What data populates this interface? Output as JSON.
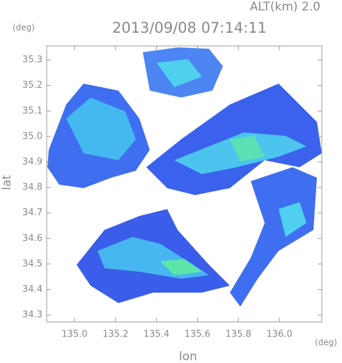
{
  "chart_data": {
    "type": "map",
    "title": "2013/09/08 07:14:11",
    "subtitle": "ALT(km) 2.0",
    "x_label": "lon",
    "y_label": "lat",
    "x_unit": "(deg)",
    "y_unit": "(deg)",
    "xlim": [
      134.864,
      136.207
    ],
    "ylim": [
      34.273,
      35.355
    ],
    "xticks": [
      {
        "value": 135,
        "label": "135.0"
      },
      135.2,
      135.4,
      135.6,
      135.8,
      {
        "value": 136,
        "label": "136.0"
      }
    ],
    "yticks": [
      34.3,
      34.4,
      34.5,
      34.6,
      34.7,
      34.8,
      34.9,
      {
        "value": 35,
        "label": "35.0"
      },
      35.1,
      35.2,
      35.3
    ]
  }
}
